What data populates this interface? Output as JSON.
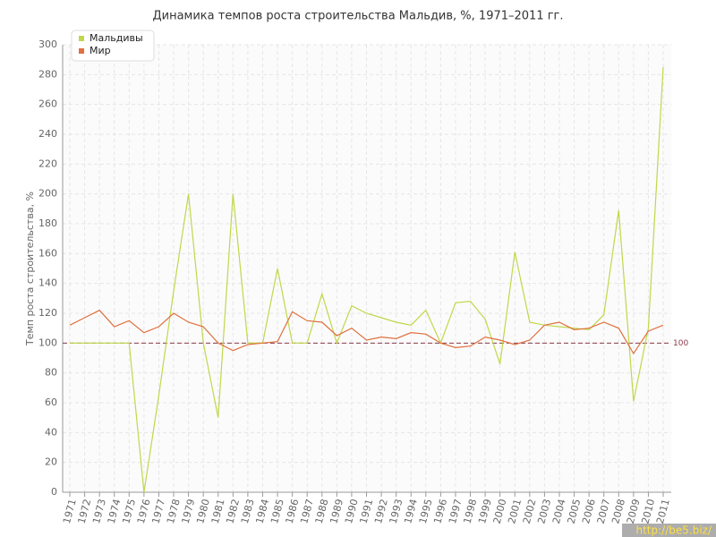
{
  "chart_data": {
    "type": "line",
    "title": "Динамика темпов роста строительства Мальдив, %, 1971–2011 гг.",
    "y_label": "Темп роста строительства, %",
    "categories": [
      "1971",
      "1972",
      "1973",
      "1974",
      "1975",
      "1976",
      "1977",
      "1978",
      "1979",
      "1980",
      "1981",
      "1982",
      "1983",
      "1984",
      "1985",
      "1986",
      "1987",
      "1988",
      "1989",
      "1990",
      "1991",
      "1992",
      "1993",
      "1994",
      "1995",
      "1996",
      "1997",
      "1998",
      "1999",
      "2000",
      "2001",
      "2002",
      "2003",
      "2004",
      "2005",
      "2006",
      "2007",
      "2008",
      "2009",
      "2010",
      "2011"
    ],
    "series": [
      {
        "name": "Мальдивы",
        "color": "#bfd84a",
        "values": [
          100,
          100,
          100,
          100,
          100,
          0,
          65,
          135,
          200,
          100,
          50,
          200,
          100,
          100,
          150,
          100,
          100,
          133,
          100,
          125,
          120,
          117,
          114,
          112,
          122,
          100,
          127,
          128,
          116,
          86,
          161,
          114,
          112,
          111,
          110,
          109,
          119,
          189,
          61,
          110,
          285
        ]
      },
      {
        "name": "Мир",
        "color": "#e0703f",
        "values": [
          112,
          117,
          122,
          111,
          115,
          107,
          111,
          120,
          114,
          111,
          100,
          95,
          99,
          100,
          101,
          121,
          115,
          114,
          105,
          110,
          102,
          104,
          103,
          107,
          106,
          100,
          97,
          98,
          104,
          102,
          99,
          102,
          112,
          114,
          109,
          110,
          114,
          110,
          93,
          108,
          112
        ]
      }
    ],
    "ylim": [
      0,
      300
    ],
    "yticks": [
      0,
      20,
      40,
      60,
      80,
      100,
      120,
      140,
      160,
      180,
      200,
      220,
      240,
      260,
      280,
      300
    ],
    "grid": true,
    "legend": "top-left",
    "reference_line": 100,
    "watermark": "http://be5.biz/"
  }
}
